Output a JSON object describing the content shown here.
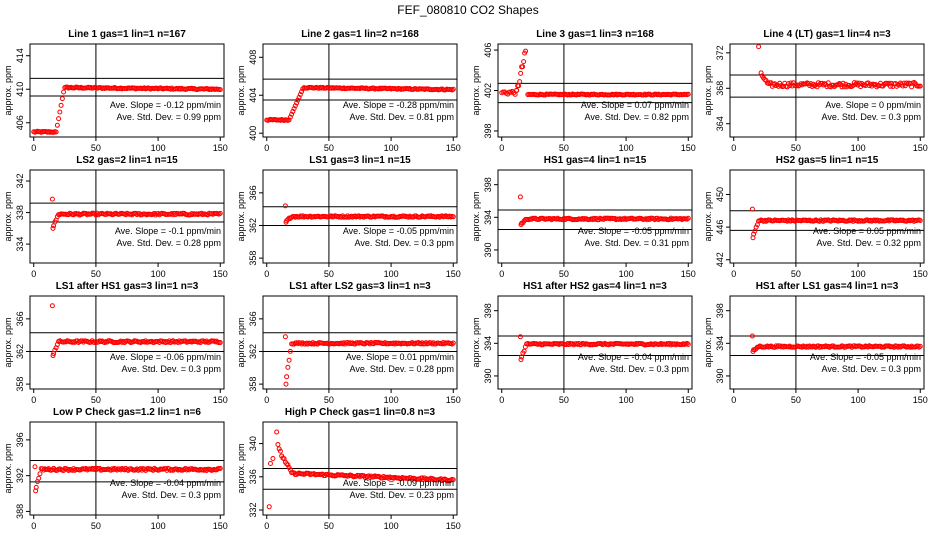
{
  "page_title": "FEF_080810  CO2 Shapes",
  "chart_data": [
    {
      "type": "scatter",
      "title": "Line 1 gas=1 lin=1 n=167",
      "ylabel": "approx. ppm",
      "xlim": [
        -3,
        153
      ],
      "ylim": [
        404.3,
        415.4
      ],
      "xticks": [
        0,
        50,
        100,
        150
      ],
      "yticks": [
        406,
        410,
        414
      ],
      "hlines": [
        409.2,
        411.3
      ],
      "vline": 50,
      "slope": "-0.12",
      "std": "0.99",
      "shape": {
        "kind": "rise",
        "t0": 0,
        "t1": 18,
        "t2": 23,
        "t3": 25,
        "t4": 150,
        "start": 404.9,
        "plateau": 410.2,
        "end": 410.0,
        "noise": 0.08
      }
    },
    {
      "type": "scatter",
      "title": "Line 2 gas=1 lin=2 n=168",
      "ylabel": "approx. ppm",
      "xlim": [
        -3,
        153
      ],
      "ylim": [
        399.6,
        409.4
      ],
      "xticks": [
        0,
        50,
        100,
        150
      ],
      "yticks": [
        400,
        404,
        408
      ],
      "hlines": [
        403.5,
        405.7
      ],
      "vline": 50,
      "slope": "-0.28",
      "std": "0.81",
      "shape": {
        "kind": "rise",
        "t0": 0,
        "t1": 18,
        "t2": 22,
        "t3": 30,
        "t4": 150,
        "start": 401.4,
        "plateau": 404.8,
        "end": 404.6,
        "noise": 0.06
      }
    },
    {
      "type": "scatter",
      "title": "Line 3 gas=1 lin=3 n=168",
      "ylabel": "approx. ppm",
      "xlim": [
        -3,
        153
      ],
      "ylim": [
        397.4,
        406.6
      ],
      "xticks": [
        0,
        50,
        100,
        150
      ],
      "yticks": [
        398,
        402,
        406
      ],
      "hlines": [
        400.8,
        402.7
      ],
      "vline": 50,
      "slope": "0.07",
      "std": "0.82",
      "shape": {
        "kind": "peak",
        "t0": 0,
        "t1": 18,
        "tp": 20,
        "t2": 150,
        "start": 401.8,
        "peak": 406.2,
        "end": 401.6,
        "noise": 0.05
      }
    },
    {
      "type": "scatter",
      "title": "Line 4 (LT) gas=1 lin=4 n=3",
      "ylabel": "approx. ppm",
      "xlim": [
        -3,
        153
      ],
      "ylim": [
        362.5,
        373.0
      ],
      "xticks": [
        0,
        50,
        100,
        150
      ],
      "yticks": [
        364,
        368,
        372
      ],
      "hlines": [
        367.0,
        369.5
      ],
      "vline": 50,
      "slope": "0",
      "std": "0.3",
      "shape": {
        "kind": "drop",
        "t0": 20,
        "tp": 22,
        "t2": 150,
        "peak": 372.7,
        "plateau": 368.4,
        "noise": 0.25
      }
    },
    {
      "type": "scatter",
      "title": "LS2 gas=2 lin=1 n=15",
      "ylabel": "approx. ppm",
      "xlim": [
        -3,
        153
      ],
      "ylim": [
        331.6,
        343.4
      ],
      "xticks": [
        0,
        50,
        100,
        150
      ],
      "yticks": [
        334,
        338,
        342
      ],
      "hlines": [
        336.8,
        339.2
      ],
      "vline": 50,
      "slope": "-0.1",
      "std": "0.28",
      "shape": {
        "kind": "spike",
        "t0": 15,
        "t2": 150,
        "spike": 339.7,
        "low": 336.0,
        "plateau": 337.8,
        "noise": 0.12
      }
    },
    {
      "type": "scatter",
      "title": "LS1 gas=3 lin=1 n=15",
      "ylabel": "approx. ppm",
      "xlim": [
        -3,
        153
      ],
      "ylim": [
        357.4,
        368.8
      ],
      "xticks": [
        0,
        50,
        100,
        150
      ],
      "yticks": [
        358,
        362,
        366
      ],
      "hlines": [
        362.0,
        364.3
      ],
      "vline": 50,
      "slope": "-0.05",
      "std": "0.3",
      "shape": {
        "kind": "spike",
        "t0": 15,
        "t2": 150,
        "spike": 364.4,
        "low": 362.4,
        "plateau": 363.1,
        "noise": 0.1
      }
    },
    {
      "type": "scatter",
      "title": "HS1 gas=4 lin=1 n=15",
      "ylabel": "approx. ppm",
      "xlim": [
        -3,
        153
      ],
      "ylim": [
        388.4,
        399.8
      ],
      "xticks": [
        0,
        50,
        100,
        150
      ],
      "yticks": [
        390,
        394,
        398
      ],
      "hlines": [
        392.5,
        394.9
      ],
      "vline": 50,
      "slope": "-0.05",
      "std": "0.31",
      "shape": {
        "kind": "spike",
        "t0": 15,
        "t2": 150,
        "spike": 396.5,
        "low": 393.1,
        "plateau": 393.8,
        "noise": 0.1
      }
    },
    {
      "type": "scatter",
      "title": "HS2 gas=5 lin=1 n=15",
      "ylabel": "approx. ppm",
      "xlim": [
        -3,
        153
      ],
      "ylim": [
        441.6,
        453.0
      ],
      "xticks": [
        0,
        50,
        100,
        150
      ],
      "yticks": [
        442,
        446,
        450
      ],
      "hlines": [
        445.6,
        448.0
      ],
      "vline": 50,
      "slope": "0.05",
      "std": "0.32",
      "shape": {
        "kind": "spike",
        "t0": 15,
        "t2": 150,
        "spike": 448.2,
        "low": 444.7,
        "plateau": 446.8,
        "noise": 0.1
      }
    },
    {
      "type": "scatter",
      "title": "LS1 after HS1 gas=3 lin=1 n=3",
      "ylabel": "approx. ppm",
      "xlim": [
        -3,
        153
      ],
      "ylim": [
        357.4,
        368.8
      ],
      "xticks": [
        0,
        50,
        100,
        150
      ],
      "yticks": [
        358,
        362,
        366
      ],
      "hlines": [
        362.0,
        364.3
      ],
      "vline": 50,
      "slope": "-0.06",
      "std": "0.3",
      "shape": {
        "kind": "spike",
        "t0": 15,
        "t2": 150,
        "spike": 367.6,
        "low": 361.5,
        "plateau": 363.2,
        "noise": 0.12
      }
    },
    {
      "type": "scatter",
      "title": "LS1 after LS2 gas=3 lin=1 n=3",
      "ylabel": "approx. ppm",
      "xlim": [
        -3,
        153
      ],
      "ylim": [
        357.4,
        368.8
      ],
      "xticks": [
        0,
        50,
        100,
        150
      ],
      "yticks": [
        358,
        362,
        366
      ],
      "hlines": [
        362.0,
        364.3
      ],
      "vline": 50,
      "slope": "0.01",
      "std": "0.28",
      "shape": {
        "kind": "spike",
        "t0": 15,
        "t2": 150,
        "spike": 363.8,
        "low": 358.0,
        "plateau": 363.0,
        "noise": 0.1
      }
    },
    {
      "type": "scatter",
      "title": "HS1 after HS2 gas=4 lin=1 n=3",
      "ylabel": "approx. ppm",
      "xlim": [
        -3,
        153
      ],
      "ylim": [
        388.4,
        399.8
      ],
      "xticks": [
        0,
        50,
        100,
        150
      ],
      "yticks": [
        390,
        394,
        398
      ],
      "hlines": [
        392.5,
        394.9
      ],
      "vline": 50,
      "slope": "-0.04",
      "std": "0.3",
      "shape": {
        "kind": "spike",
        "t0": 15,
        "t2": 150,
        "spike": 394.8,
        "low": 392.0,
        "plateau": 393.9,
        "noise": 0.1
      }
    },
    {
      "type": "scatter",
      "title": "HS1 after LS1 gas=4 lin=1 n=3",
      "ylabel": "approx. ppm",
      "xlim": [
        -3,
        153
      ],
      "ylim": [
        388.4,
        399.8
      ],
      "xticks": [
        0,
        50,
        100,
        150
      ],
      "yticks": [
        390,
        394,
        398
      ],
      "hlines": [
        392.5,
        394.9
      ],
      "vline": 50,
      "slope": "-0.05",
      "std": "0.3",
      "shape": {
        "kind": "spike",
        "t0": 15,
        "t2": 150,
        "spike": 394.9,
        "low": 393.0,
        "plateau": 393.6,
        "noise": 0.1
      }
    },
    {
      "type": "scatter",
      "title": "Low P Check gas=1.2 lin=1 n=6",
      "ylabel": "approx. ppm",
      "xlim": [
        -3,
        153
      ],
      "ylim": [
        387.6,
        398.0
      ],
      "xticks": [
        0,
        50,
        100,
        150
      ],
      "yticks": [
        388,
        392,
        396
      ],
      "hlines": [
        391.3,
        393.7
      ],
      "vline": 50,
      "slope": "-0.04",
      "std": "0.3",
      "shape": {
        "kind": "spike",
        "t0": 1,
        "t2": 150,
        "spike": 393.0,
        "low": 390.3,
        "plateau": 392.7,
        "noise": 0.12
      }
    },
    {
      "type": "scatter",
      "title": "High P Check gas=1 lin=0.8 n=3",
      "ylabel": "approx. ppm",
      "xlim": [
        -3,
        153
      ],
      "ylim": [
        331.4,
        342.6
      ],
      "xticks": [
        0,
        50,
        100,
        150
      ],
      "yticks": [
        332,
        336,
        340
      ],
      "hlines": [
        334.5,
        337.0
      ],
      "vline": 50,
      "slope": "-0.09",
      "std": "0.23",
      "shape": {
        "kind": "early",
        "t0": 2,
        "tp": 8,
        "t2": 150,
        "low": 332.4,
        "peak": 341.4,
        "plateau": 335.7,
        "noise": 0.12
      }
    }
  ],
  "labels": {
    "slope_prefix": "Ave. Slope = ",
    "slope_unit": " ppm/min",
    "std_prefix": "Ave. Std. Dev. = ",
    "std_unit": " ppm"
  },
  "colors": {
    "points": "#ff0000",
    "axes": "#000000"
  }
}
